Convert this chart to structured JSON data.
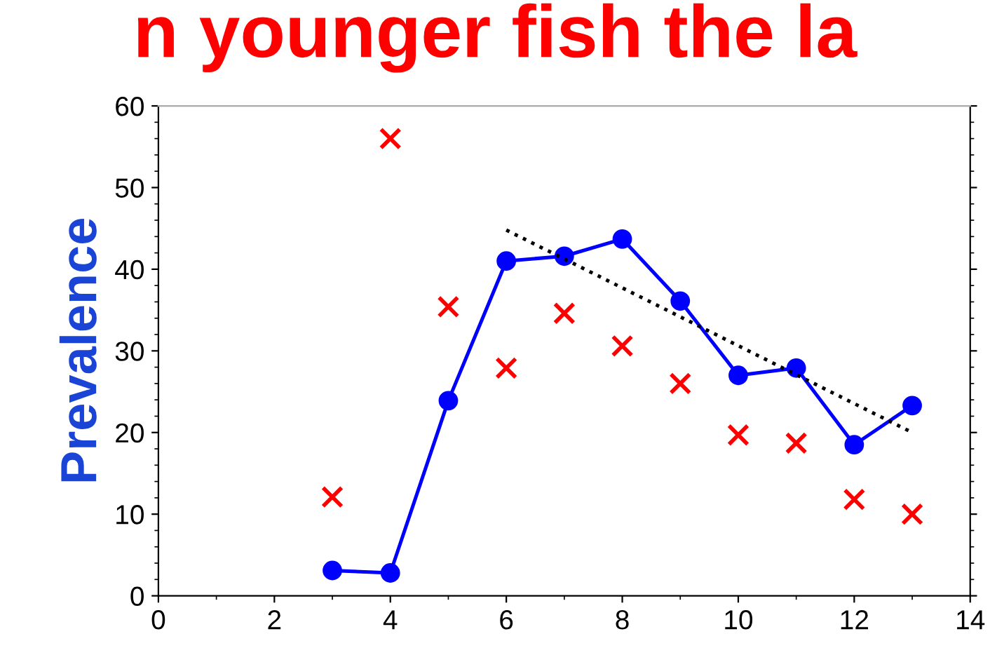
{
  "chart_data": {
    "type": "line",
    "title": "n younger fish the la",
    "ylabel": "Prevalence",
    "xlim": [
      0,
      14
    ],
    "xticks": [
      0,
      2,
      4,
      6,
      8,
      10,
      12,
      {
        "value": 14,
        "label": "14"
      }
    ],
    "ylim": [
      0,
      60
    ],
    "yticks": [
      0,
      10,
      20,
      30,
      40,
      50,
      60
    ],
    "grid": false,
    "legend": false,
    "series": [
      {
        "color": "#0000ff",
        "marker": "circle",
        "line_style": "solid",
        "x": [
          3,
          4,
          5,
          6,
          7,
          8,
          9,
          10,
          11,
          12,
          13
        ],
        "values": [
          3.1,
          2.8,
          23.9,
          41,
          41.6,
          43.7,
          36.1,
          27,
          27.9,
          18.5,
          23.3
        ]
      },
      {
        "type": "scatter",
        "color": "#ff0000",
        "marker": "cross",
        "x": [
          3,
          4,
          5,
          6,
          7,
          8,
          9,
          10,
          11,
          12,
          13
        ],
        "values": [
          12.1,
          56,
          35.4,
          27.9,
          34.6,
          30.6,
          26,
          19.7,
          18.7,
          11.8,
          10
        ]
      },
      {
        "color": "#000000",
        "marker": "none",
        "line_style": "dotted",
        "x": [
          6,
          13
        ],
        "values": [
          44.8,
          20
        ]
      }
    ]
  }
}
